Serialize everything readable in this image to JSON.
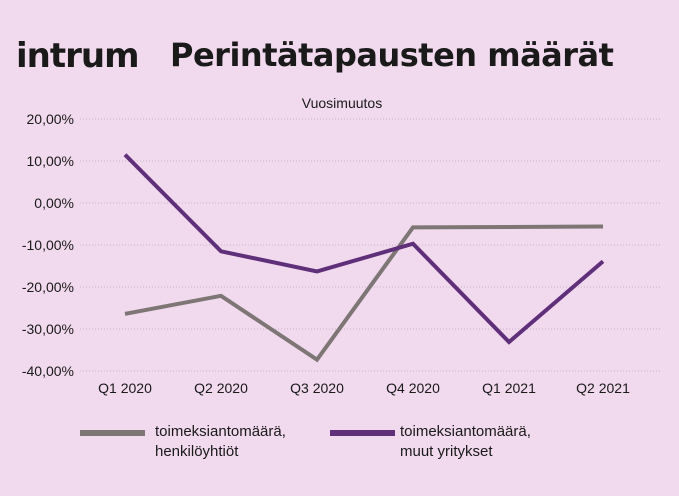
{
  "header": {
    "logo": "intrum",
    "title": "Perintätapausten määrät"
  },
  "chart_data": {
    "type": "line",
    "title": "Vuosimuutos",
    "categories": [
      "Q1 2020",
      "Q2 2020",
      "Q3 2020",
      "Q4 2020",
      "Q1 2021",
      "Q2 2021"
    ],
    "ylim": [
      -40,
      20
    ],
    "yticks": [
      20,
      10,
      0,
      -10,
      -20,
      -30,
      -40
    ],
    "ytick_labels": [
      "20,00%",
      "10,00%",
      "0,00%",
      "-10,00%",
      "-20,00%",
      "-30,00%",
      "-40,00%"
    ],
    "grid": true,
    "legend_placement": "bottom",
    "series": [
      {
        "name": "toimeksiantomäärä, henkilöyhtiöt",
        "line1": "toimeksiantomäärä,",
        "line2": "henkilöyhtiöt",
        "color": "#7d7675",
        "values": [
          -26.4,
          -22.1,
          -37.3,
          -5.8,
          -5.7,
          -5.6
        ]
      },
      {
        "name": "toimeksiantomäärä, muut yritykset",
        "line1": "toimeksiantomäärä,",
        "line2": "muut yritykset",
        "color": "#5f2f7a",
        "values": [
          11.5,
          -11.5,
          -16.3,
          -9.7,
          -33.1,
          -13.9
        ]
      }
    ]
  }
}
